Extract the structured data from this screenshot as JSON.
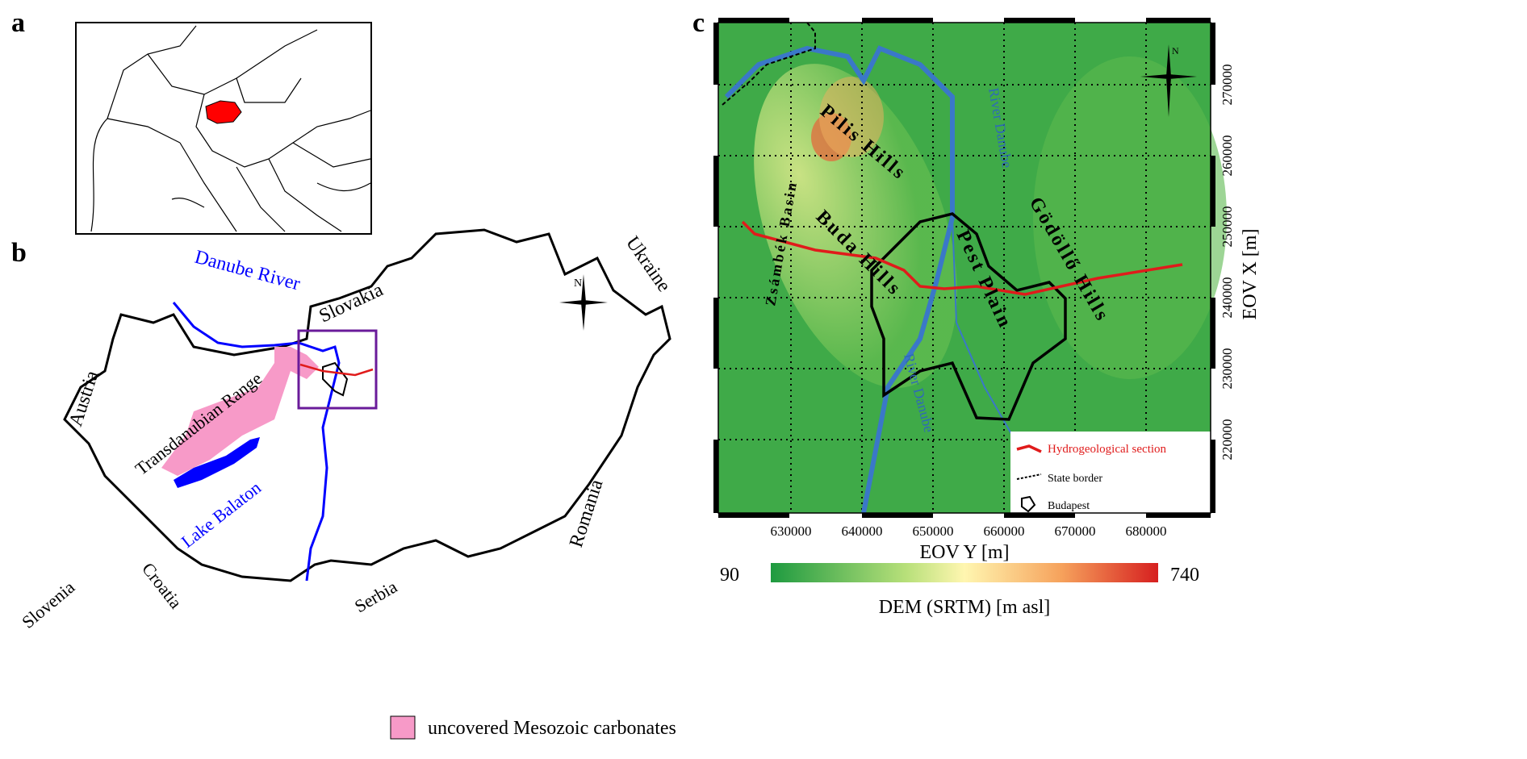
{
  "panels": {
    "a": {
      "letter": "a"
    },
    "b": {
      "letter": "b",
      "countries": [
        "Slovakia",
        "Ukraine",
        "Austria",
        "Romania",
        "Slovenia",
        "Croatia",
        "Serbia"
      ],
      "features": {
        "danube": "Danube River",
        "range": "Transdanubian Range",
        "lake": "Lake Balaton"
      },
      "north": "N",
      "legend": "uncovered Mesozoic carbonates"
    },
    "c": {
      "letter": "c",
      "north": "N",
      "places": {
        "pilis": "Pilis Hills",
        "buda": "Buda Hills",
        "pest": "Pest Plain",
        "godollo": "Gödöllő Hills",
        "zsambek": "Zsámbék Basin",
        "river1": "River Danube",
        "river2": "River Danube"
      },
      "xaxis": {
        "label": "EOV Y [m]",
        "ticks": [
          "630000",
          "640000",
          "650000",
          "660000",
          "670000",
          "680000"
        ]
      },
      "yaxis": {
        "label": "EOV X [m]",
        "ticks": [
          "270000",
          "260000",
          "250000",
          "240000",
          "230000",
          "220000"
        ]
      },
      "legend": [
        "Hydrogeological section",
        "State border",
        "Budapest"
      ],
      "colorbar": {
        "min": "90",
        "max": "740",
        "label": "DEM (SRTM) [m asl]",
        "colors": [
          "#1e9a40",
          "#b8e07a",
          "#fff6b0",
          "#f6a25c",
          "#d61f1f"
        ]
      }
    }
  },
  "colors": {
    "hungary": "#ff0000",
    "danube": "#0000ff",
    "carbonates": "#f79ac8",
    "section": "#e01b1b",
    "box": "#6a1b9a"
  }
}
